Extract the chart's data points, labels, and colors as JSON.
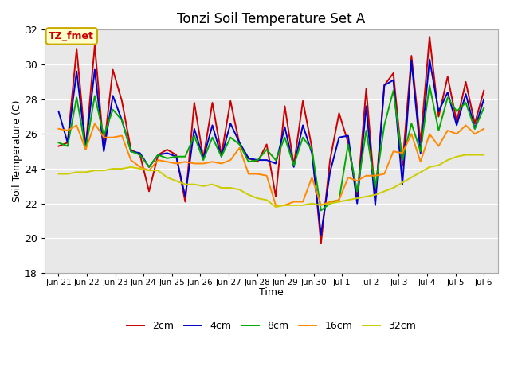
{
  "title": "Tonzi Soil Temperature Set A",
  "xlabel": "Time",
  "ylabel": "Soil Temperature (C)",
  "ylim": [
    18,
    32
  ],
  "bg_color": "#e8e8e8",
  "fig_bg": "#ffffff",
  "annotation_text": "TZ_fmet",
  "annotation_bg": "#ffffcc",
  "annotation_border": "#ccaa00",
  "xtick_labels": [
    "Jun 21",
    "Jun 22",
    "Jun 23",
    "Jun 24",
    "Jun 25",
    "Jun 26",
    "Jun 27",
    "Jun 28",
    "Jun 29",
    "Jun 30",
    "Jul 1",
    "Jul 2",
    "Jul 3",
    "Jul 4",
    "Jul 5",
    "Jul 6"
  ],
  "xtick_positions": [
    1,
    2,
    3,
    4,
    5,
    6,
    7,
    8,
    9,
    10,
    11,
    12,
    13,
    14,
    15,
    16
  ],
  "xlim": [
    0.5,
    16.5
  ],
  "ytick_positions": [
    18,
    20,
    22,
    24,
    26,
    28,
    30,
    32
  ],
  "gridlines_y": [
    20,
    22,
    24,
    26,
    28,
    30
  ],
  "line_colors": [
    "#cc0000",
    "#0000cc",
    "#00aa00",
    "#ff8800",
    "#cccc00"
  ],
  "line_labels": [
    "2cm",
    "4cm",
    "8cm",
    "16cm",
    "32cm"
  ],
  "line_width": 1.4,
  "data_2cm": [
    25.3,
    25.5,
    30.9,
    25.2,
    31.1,
    25.1,
    29.7,
    27.9,
    25.1,
    24.8,
    22.7,
    24.8,
    25.1,
    24.8,
    22.1,
    27.8,
    24.6,
    27.8,
    24.8,
    27.9,
    25.4,
    24.6,
    24.4,
    25.4,
    22.4,
    27.6,
    24.2,
    27.9,
    25.2,
    19.7,
    24.5,
    27.2,
    25.5,
    22.3,
    28.6,
    22.3,
    28.8,
    29.5,
    24.2,
    30.5,
    25.5,
    31.6,
    27.0,
    29.3,
    26.7,
    29.0,
    26.6,
    28.5
  ],
  "data_4cm": [
    27.3,
    25.5,
    29.6,
    25.2,
    29.7,
    25.0,
    28.2,
    26.8,
    25.0,
    24.9,
    24.1,
    24.8,
    24.9,
    24.7,
    22.4,
    26.3,
    24.6,
    26.5,
    24.7,
    26.6,
    25.5,
    24.6,
    24.5,
    24.5,
    24.3,
    26.4,
    24.1,
    26.5,
    24.9,
    20.2,
    23.8,
    25.8,
    25.9,
    22.0,
    27.6,
    21.9,
    28.8,
    29.1,
    23.1,
    30.2,
    24.9,
    30.3,
    27.3,
    28.4,
    26.5,
    28.3,
    26.3,
    28.0
  ],
  "data_8cm": [
    25.5,
    25.3,
    28.1,
    25.1,
    28.2,
    25.9,
    27.4,
    26.8,
    25.0,
    24.8,
    24.1,
    24.8,
    24.6,
    24.7,
    24.7,
    25.9,
    24.5,
    25.8,
    24.7,
    25.8,
    25.4,
    24.4,
    24.5,
    25.1,
    24.5,
    25.8,
    24.2,
    25.8,
    25.1,
    21.6,
    22.0,
    22.2,
    25.4,
    22.7,
    26.2,
    22.9,
    26.5,
    28.5,
    24.5,
    26.6,
    25.0,
    28.8,
    26.2,
    28.1,
    27.3,
    27.8,
    26.3,
    27.5
  ],
  "data_16cm": [
    26.3,
    26.2,
    26.5,
    25.1,
    26.6,
    25.8,
    25.8,
    25.9,
    24.5,
    24.1,
    23.9,
    24.5,
    24.4,
    24.3,
    24.4,
    24.3,
    24.3,
    24.4,
    24.3,
    24.5,
    25.2,
    23.7,
    23.7,
    23.6,
    21.9,
    21.9,
    22.1,
    22.1,
    23.5,
    21.9,
    22.1,
    22.2,
    23.5,
    23.3,
    23.6,
    23.6,
    23.7,
    25.0,
    24.9,
    26.0,
    24.4,
    26.0,
    25.3,
    26.2,
    26.0,
    26.5,
    26.0,
    26.3
  ],
  "data_32cm": [
    23.7,
    23.7,
    23.8,
    23.8,
    23.9,
    23.9,
    24.0,
    24.0,
    24.1,
    24.0,
    23.9,
    23.9,
    23.5,
    23.3,
    23.1,
    23.1,
    23.0,
    23.1,
    22.9,
    22.9,
    22.8,
    22.5,
    22.3,
    22.2,
    21.8,
    21.9,
    21.9,
    21.9,
    22.0,
    21.9,
    22.0,
    22.1,
    22.2,
    22.3,
    22.4,
    22.5,
    22.7,
    22.9,
    23.2,
    23.5,
    23.8,
    24.1,
    24.2,
    24.5,
    24.7,
    24.8,
    24.8,
    24.8
  ]
}
